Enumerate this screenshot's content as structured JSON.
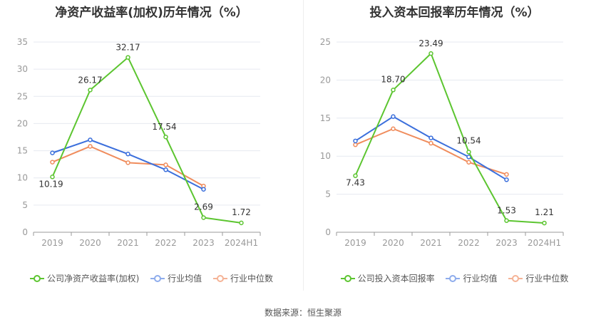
{
  "colors": {
    "company": "#5cc530",
    "avg": "#3b6fdc",
    "median": "#f08c5c",
    "grid": "#e6e9f0",
    "axis": "#999999",
    "label": "#333333"
  },
  "legend_colors": {
    "company": "#5cc530",
    "avg": "#8eacec",
    "median": "#f5b396"
  },
  "source": "数据来源：恒生聚源",
  "chart_data": [
    {
      "type": "line",
      "title": "净资产收益率(加权)历年情况（%）",
      "categories": [
        "2019",
        "2020",
        "2021",
        "2022",
        "2023",
        "2024H1"
      ],
      "ylim": [
        0,
        35
      ],
      "yticks": [
        0,
        5,
        10,
        15,
        20,
        25,
        30,
        35
      ],
      "grid": true,
      "legend_position": "bottom",
      "series": [
        {
          "name": "公司净资产收益率(加权)",
          "key": "company",
          "values": [
            10.19,
            26.17,
            32.17,
            17.54,
            2.69,
            1.72
          ],
          "labels": [
            "10.19",
            "26.17",
            "32.17",
            "17.54",
            "2.69",
            "1.72"
          ]
        },
        {
          "name": "行业均值",
          "key": "avg",
          "values": [
            14.6,
            17.0,
            14.4,
            11.5,
            7.9,
            null
          ]
        },
        {
          "name": "行业中位数",
          "key": "median",
          "values": [
            12.9,
            15.8,
            12.8,
            12.4,
            8.5,
            null
          ]
        }
      ]
    },
    {
      "type": "line",
      "title": "投入资本回报率历年情况（%）",
      "categories": [
        "2019",
        "2020",
        "2021",
        "2022",
        "2023",
        "2024H1"
      ],
      "ylim": [
        0,
        25
      ],
      "yticks": [
        0,
        5,
        10,
        15,
        20,
        25
      ],
      "grid": true,
      "legend_position": "bottom",
      "series": [
        {
          "name": "公司投入资本回报率",
          "key": "company",
          "values": [
            7.43,
            18.7,
            23.49,
            10.54,
            1.53,
            1.21
          ],
          "labels": [
            "7.43",
            "18.70",
            "23.49",
            "10.54",
            "1.53",
            "1.21"
          ]
        },
        {
          "name": "行业均值",
          "key": "avg",
          "values": [
            12.0,
            15.2,
            12.4,
            9.9,
            6.9,
            null
          ]
        },
        {
          "name": "行业中位数",
          "key": "median",
          "values": [
            11.5,
            13.6,
            11.7,
            9.2,
            7.6,
            null
          ]
        }
      ]
    }
  ]
}
